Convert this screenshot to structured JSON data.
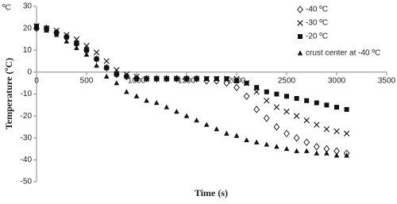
{
  "chart_data": {
    "type": "scatter",
    "unit_label": "ºC",
    "x_label": "Time (s)",
    "y_label": "Temperature (ºC)",
    "xlim": [
      0,
      3500
    ],
    "xticks": [
      0,
      500,
      1000,
      1500,
      2000,
      2500,
      3000,
      3500
    ],
    "ylim": [
      -50,
      30
    ],
    "yticks": [
      -50,
      -40,
      -30,
      -20,
      -10,
      0,
      10,
      20,
      30
    ],
    "x": [
      0,
      100,
      200,
      300,
      400,
      500,
      600,
      700,
      800,
      900,
      1000,
      1100,
      1200,
      1300,
      1400,
      1500,
      1600,
      1700,
      1800,
      1900,
      2000,
      2100,
      2200,
      2300,
      2400,
      2500,
      2600,
      2700,
      2800,
      2900,
      3000,
      3100
    ],
    "series": [
      {
        "name": "-40 ºC",
        "color": "#111",
        "marker": "diamond",
        "values": [
          20,
          20,
          18,
          16,
          13,
          10,
          6,
          2,
          -1,
          -2,
          -3,
          -3,
          -3,
          -3,
          -3,
          -3,
          -3,
          -4,
          -4,
          -5,
          -7,
          -11,
          -17,
          -21,
          -25,
          -28,
          -30,
          -32,
          -34,
          -35,
          -36,
          -37
        ]
      },
      {
        "name": "-30 ºC",
        "color": "#111",
        "marker": "cross",
        "values": [
          21,
          20,
          19,
          17,
          15,
          12,
          9,
          5,
          1,
          -1,
          -2,
          -3,
          -3,
          -3,
          -3,
          -3,
          -3,
          -3,
          -3,
          -3,
          -3,
          -5,
          -9,
          -13,
          -16,
          -18,
          -20,
          -22,
          -24,
          -26,
          -27,
          -28
        ]
      },
      {
        "name": "-20 ºC",
        "color": "#111",
        "marker": "square",
        "values": [
          21,
          20,
          18,
          16,
          13,
          10,
          6,
          2,
          -1,
          -2,
          -3,
          -3,
          -3,
          -3,
          -3,
          -3,
          -3,
          -3,
          -3,
          -3,
          -4,
          -5,
          -7,
          -9,
          -10,
          -11,
          -12,
          -13,
          -14,
          -15,
          -16,
          -17
        ]
      },
      {
        "name": "crust center at -40 ºC",
        "color": "#111",
        "marker": "triangle",
        "values": [
          20,
          19,
          17,
          14,
          11,
          8,
          3,
          -2,
          -5,
          -9,
          -11,
          -13,
          -14,
          -16,
          -18,
          -20,
          -22,
          -24,
          -26,
          -28,
          -29,
          -31,
          -32,
          -33,
          -34,
          -35,
          -36,
          -36,
          -37,
          -37,
          -38,
          -38
        ]
      }
    ]
  }
}
